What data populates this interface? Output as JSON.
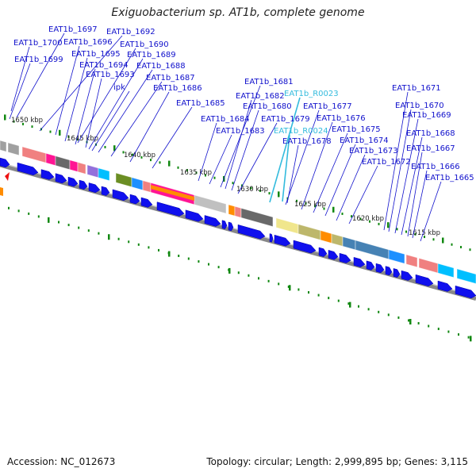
{
  "title": "Exiguobacterium sp. AT1b, complete genome",
  "footer": {
    "accession": "Accession: NC_012673",
    "topology": "Topology: circular; Length: 2,999,895 bp; Genes: 3,115"
  },
  "scale_labels": [
    "1650 kbp",
    "1645 kbp",
    "1640 kbp",
    "1635 kbp",
    "1630 kbp",
    "1625 kbp",
    "1620 kbp",
    "1615 kbp"
  ],
  "gene_labels": [
    {
      "text": "EAT1b_1697",
      "kind": "gene"
    },
    {
      "text": "EAT1b_1692",
      "kind": "gene"
    },
    {
      "text": "EAT1b_1700",
      "kind": "gene"
    },
    {
      "text": "EAT1b_1696",
      "kind": "gene"
    },
    {
      "text": "EAT1b_1690",
      "kind": "gene"
    },
    {
      "text": "EAT1b_1695",
      "kind": "gene"
    },
    {
      "text": "EAT1b_1689",
      "kind": "gene"
    },
    {
      "text": "EAT1b_1699",
      "kind": "gene"
    },
    {
      "text": "EAT1b_1694",
      "kind": "gene"
    },
    {
      "text": "EAT1b_1688",
      "kind": "gene"
    },
    {
      "text": "EAT1b_1693",
      "kind": "gene"
    },
    {
      "text": "EAT1b_1687",
      "kind": "gene"
    },
    {
      "text": "ipk",
      "kind": "gene"
    },
    {
      "text": "EAT1b_1686",
      "kind": "gene"
    },
    {
      "text": "EAT1b_1685",
      "kind": "gene"
    },
    {
      "text": "EAT1b_1681",
      "kind": "gene"
    },
    {
      "text": "EAT1b_R0023",
      "kind": "rna"
    },
    {
      "text": "EAT1b_1682",
      "kind": "gene"
    },
    {
      "text": "EAT1b_1680",
      "kind": "gene"
    },
    {
      "text": "EAT1b_1677",
      "kind": "gene"
    },
    {
      "text": "EAT1b_1684",
      "kind": "gene"
    },
    {
      "text": "EAT1b_1679",
      "kind": "gene"
    },
    {
      "text": "EAT1b_1676",
      "kind": "gene"
    },
    {
      "text": "EAT1b_1683",
      "kind": "gene"
    },
    {
      "text": "EAT1b_R0024",
      "kind": "rna"
    },
    {
      "text": "EAT1b_1675",
      "kind": "gene"
    },
    {
      "text": "EAT1b_1678",
      "kind": "gene"
    },
    {
      "text": "EAT1b_1674",
      "kind": "gene"
    },
    {
      "text": "EAT1b_1673",
      "kind": "gene"
    },
    {
      "text": "EAT1b_1672",
      "kind": "gene"
    },
    {
      "text": "EAT1b_1671",
      "kind": "gene"
    },
    {
      "text": "EAT1b_1670",
      "kind": "gene"
    },
    {
      "text": "EAT1b_1669",
      "kind": "gene"
    },
    {
      "text": "EAT1b_1668",
      "kind": "gene"
    },
    {
      "text": "EAT1b_1667",
      "kind": "gene"
    },
    {
      "text": "EAT1b_1666",
      "kind": "gene"
    },
    {
      "text": "EAT1b_1665",
      "kind": "gene"
    }
  ],
  "colors": {
    "label_gene": "#1111cc",
    "label_rna": "#33bbdd",
    "cds_arrow": "#1010ee",
    "backbone": "#888888",
    "tick": "#118811",
    "start_marker": "#ee1111",
    "cog_palette": [
      "#f08080",
      "#ff1493",
      "#a0a0a0",
      "#6b8e23",
      "#1e90ff",
      "#ff8c00",
      "#bdb76b",
      "#4682b4",
      "#9370db",
      "#00bfff",
      "#696969",
      "#c0c0c0",
      "#f0e68c"
    ]
  }
}
